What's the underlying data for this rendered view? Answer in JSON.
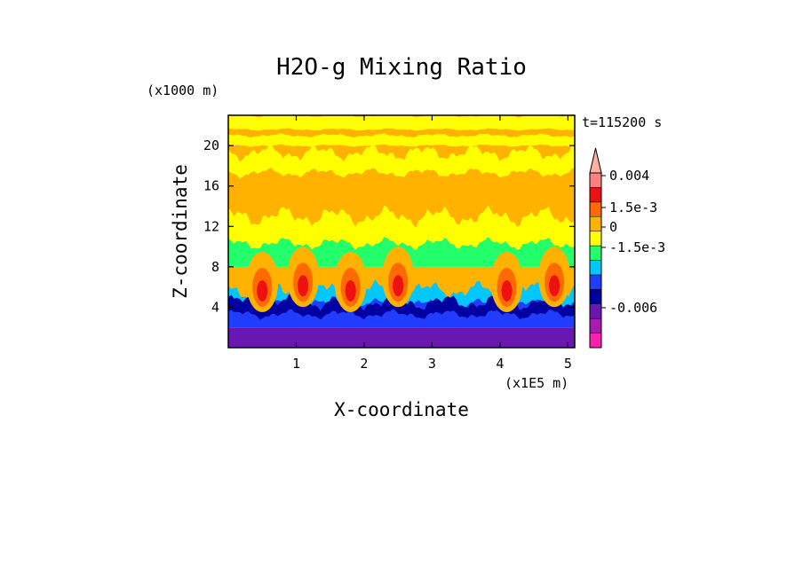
{
  "chart_data": {
    "type": "heatmap",
    "title": "H2O-g Mixing Ratio",
    "xlabel": "X-coordinate",
    "ylabel": "Z-coordinate",
    "x_units": "(x1E5 m)",
    "y_units": "(x1000 m)",
    "time_label": "t=115200 s",
    "x_ticks": [
      "1",
      "2",
      "3",
      "4",
      "5"
    ],
    "x_tick_values": [
      1,
      2,
      3,
      4,
      5
    ],
    "y_ticks": [
      "4",
      "8",
      "12",
      "16",
      "20"
    ],
    "y_tick_values": [
      4,
      8,
      12,
      16,
      20
    ],
    "xlim": [
      0,
      5.1
    ],
    "ylim": [
      0,
      23
    ],
    "colorbar": {
      "labels": [
        "0.004",
        "1.5e-3",
        "0",
        "-1.5e-3",
        "-0.006"
      ],
      "levels": [
        -0.009,
        -0.006,
        -0.004,
        -0.0015,
        -0.001,
        -0.0005,
        0,
        0.0005,
        0.001,
        0.0015,
        0.002,
        0.004
      ],
      "colors": [
        "#ff1fb4",
        "#a81ab0",
        "#6a16b3",
        "#0000a0",
        "#1f3cff",
        "#00c8ff",
        "#22ff6a",
        "#ffff00",
        "#ffb300",
        "#ff6a00",
        "#ee1111",
        "#ff8080",
        "#ffb0a0"
      ]
    },
    "layers": [
      {
        "z_min": 0,
        "z_max": 2,
        "dominant_value": -0.006
      },
      {
        "z_min": 2,
        "z_max": 5,
        "dominant_value": -0.0015
      },
      {
        "z_min": 5,
        "z_max": 8,
        "dominant_value": 0.0005
      },
      {
        "z_min": 8,
        "z_max": 11,
        "dominant_value": -0.0005
      },
      {
        "z_min": 11,
        "z_max": 18,
        "dominant_value": 0.0005
      },
      {
        "z_min": 18,
        "z_max": 23,
        "dominant_value": 0.0005
      }
    ],
    "plumes_x": [
      0.5,
      1.1,
      1.8,
      2.5,
      4.1,
      4.8
    ]
  }
}
